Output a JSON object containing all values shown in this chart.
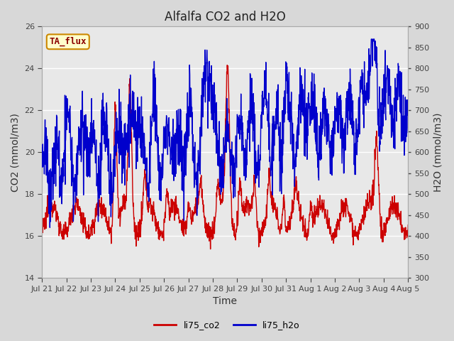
{
  "title": "Alfalfa CO2 and H2O",
  "xlabel": "Time",
  "ylabel_left": "CO2 (mmol/m3)",
  "ylabel_right": "H2O (mmol/m3)",
  "ylim_left": [
    14,
    26
  ],
  "ylim_right": [
    300,
    900
  ],
  "yticks_left": [
    14,
    16,
    18,
    20,
    22,
    24,
    26
  ],
  "yticks_right": [
    300,
    350,
    400,
    450,
    500,
    550,
    600,
    650,
    700,
    750,
    800,
    850,
    900
  ],
  "xtick_labels": [
    "Jul 21",
    "Jul 22",
    "Jul 23",
    "Jul 24",
    "Jul 25",
    "Jul 26",
    "Jul 27",
    "Jul 28",
    "Jul 29",
    "Jul 30",
    "Jul 31",
    "Aug 1",
    "Aug 2",
    "Aug 3",
    "Aug 4",
    "Aug 5"
  ],
  "color_co2": "#cc0000",
  "color_h2o": "#0000cc",
  "legend_labels": [
    "li75_co2",
    "li75_h2o"
  ],
  "annotation_text": "TA_flux",
  "fig_bg_color": "#d8d8d8",
  "plot_bg_color": "#e8e8e8",
  "grid_color": "#ffffff",
  "title_fontsize": 12,
  "axis_label_fontsize": 10,
  "tick_fontsize": 8,
  "linewidth": 1.0
}
